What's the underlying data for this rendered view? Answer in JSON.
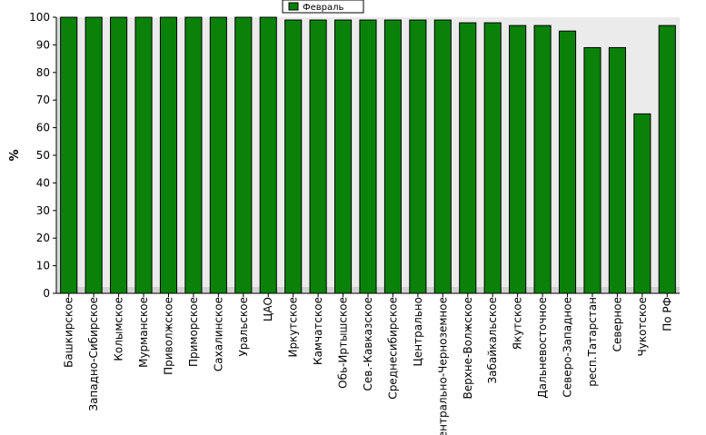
{
  "chart_data": {
    "type": "bar",
    "title": "",
    "xlabel": "",
    "ylabel": "%",
    "ylim": [
      0,
      100
    ],
    "yticks": [
      0,
      10,
      20,
      30,
      40,
      50,
      60,
      70,
      80,
      90,
      100
    ],
    "grid": false,
    "legend_position": "top-center",
    "bar_color": "#0a820a",
    "categories": [
      "Башкирское",
      "Западно-Сибирское",
      "Колымское",
      "Мурманское",
      "Приволжское",
      "Приморское",
      "Сахалинское",
      "Уральское",
      "ЦАО",
      "Иркутское",
      "Камчатское",
      "Обь-Иртышское",
      "Сев.-Кавказское",
      "Среднесибирское",
      "Центрально",
      "Центрально-Черноземное",
      "Верхне-Волжское",
      "Забайкальское",
      "Якутское",
      "Дальневосточное",
      "Северо-Западное",
      "респ.Татарстан",
      "Северное",
      "Чукотское",
      "По РФ"
    ],
    "series": [
      {
        "name": "Февраль",
        "values": [
          100,
          100,
          100,
          100,
          100,
          100,
          100,
          100,
          100,
          99,
          99,
          99,
          99,
          99,
          99,
          99,
          98,
          98,
          97,
          97,
          95,
          89,
          89,
          65,
          97
        ]
      }
    ]
  }
}
